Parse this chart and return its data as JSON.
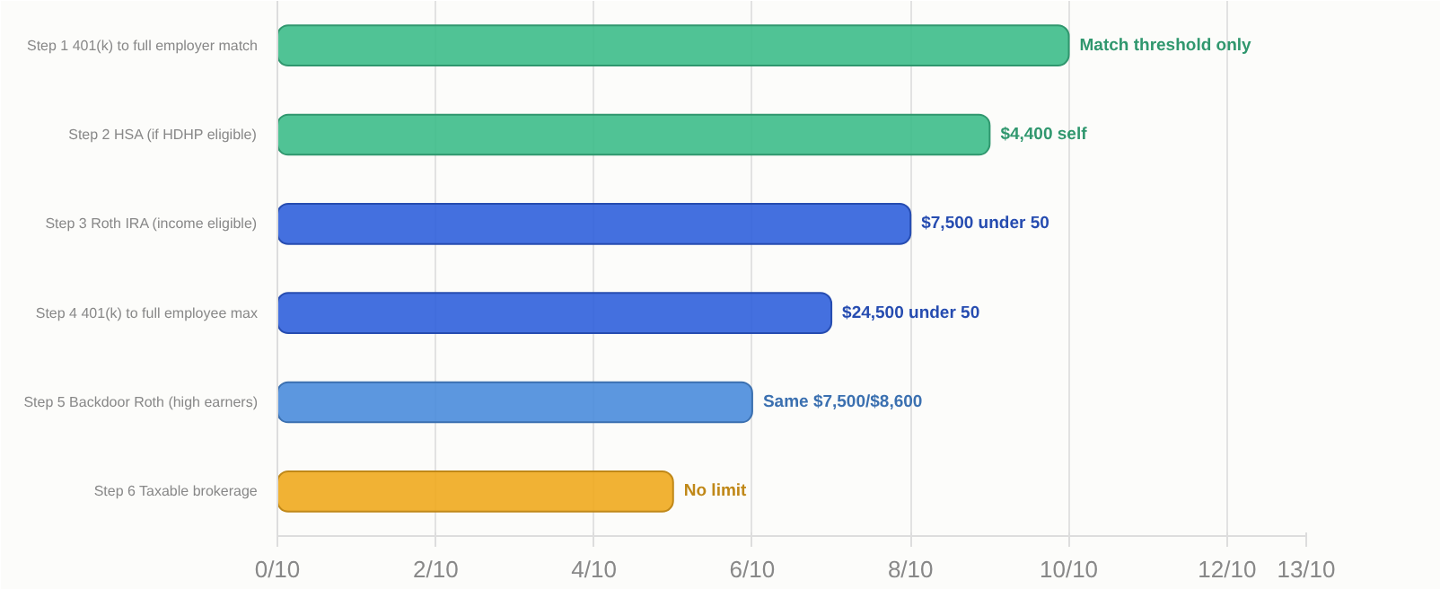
{
  "chart_data": {
    "type": "bar",
    "orientation": "horizontal",
    "categories": [
      "Step 1 401(k) to full employer match",
      "Step 2 HSA (if HDHP eligible)",
      "Step 3 Roth IRA (income eligible)",
      "Step 4 401(k) to full employee max",
      "Step 5 Backdoor Roth (high earners)",
      "Step 6 Taxable brokerage"
    ],
    "values": [
      1.0,
      0.9,
      0.8,
      0.7,
      0.6,
      0.5
    ],
    "colors": [
      "#3dbd8a",
      "#3dbd8a",
      "#3060dc",
      "#3060dc",
      "#4a8cdc",
      "#f0aa1e"
    ],
    "annotations": [
      {
        "text": "Match threshold only",
        "x": 1.0,
        "y": "Step 1 401(k) to full employer match"
      },
      {
        "text": "$4,400 self",
        "x": 0.9,
        "y": "Step 2 HSA (if HDHP eligible)"
      },
      {
        "text": "$7,500 under 50",
        "x": 0.8,
        "y": "Step 3 Roth IRA (income eligible)"
      },
      {
        "text": "$24,500 under 50",
        "x": 0.7,
        "y": "Step 4 401(k) to full employee max"
      },
      {
        "text": "Same $7,500/$8,600",
        "x": 0.6,
        "y": "Step 5 Backdoor Roth (high earners)"
      },
      {
        "text": "No limit",
        "x": 0.5,
        "y": "Step 6 Taxable brokerage"
      }
    ],
    "xlim": [
      0,
      1.3
    ],
    "xticks": [
      {
        "value": 0,
        "label": "0/10"
      },
      {
        "value": 0.2,
        "label": "2/10"
      },
      {
        "value": 0.4,
        "label": "4/10"
      },
      {
        "value": 0.6,
        "label": "6/10"
      },
      {
        "value": 0.8,
        "label": "8/10"
      },
      {
        "value": 1.0,
        "label": "10/10"
      },
      {
        "value": 1.2,
        "label": "12/10"
      },
      {
        "value": 1.3,
        "label": "13/10"
      }
    ],
    "grid": "x"
  }
}
